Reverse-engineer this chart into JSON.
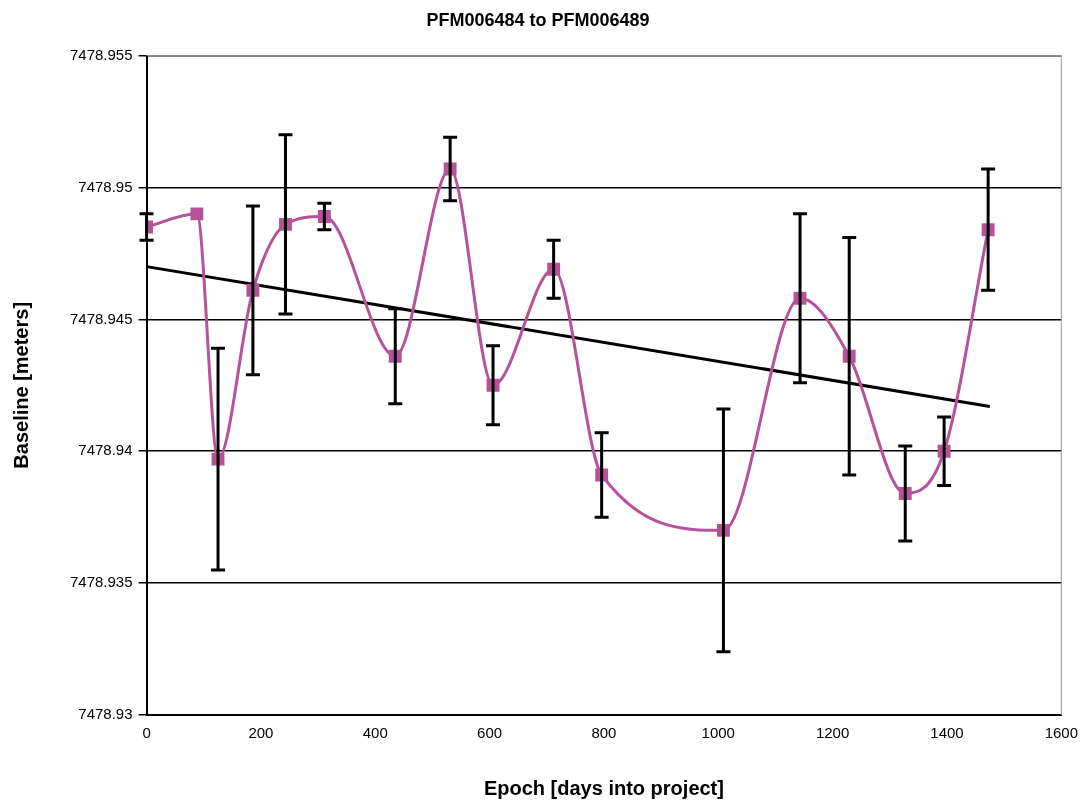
{
  "chart_data": {
    "type": "line",
    "title": "PFM006484 to PFM006489",
    "xlabel": "Epoch [days into project]",
    "ylabel": "Baseline [meters]",
    "x": [
      0,
      88,
      125,
      186,
      243,
      311,
      435,
      531,
      606,
      712,
      796,
      1009,
      1143,
      1229,
      1327,
      1395,
      1472
    ],
    "series": [
      {
        "color": "#b5529a",
        "marker": "square",
        "values": [
          7478.9485,
          7478.949,
          7478.9397,
          7478.9461,
          7478.9486,
          7478.9489,
          7478.9436,
          7478.9507,
          7478.9425,
          7478.9469,
          7478.9391,
          7478.937,
          7478.9458,
          7478.9436,
          7478.9384,
          7478.94,
          7478.9484
        ],
        "errors": [
          0.0005,
          null,
          0.0042,
          0.0032,
          0.0034,
          0.0005,
          0.0018,
          0.0012,
          0.0015,
          0.0011,
          0.0016,
          0.0046,
          0.0032,
          0.0045,
          0.0018,
          0.0013,
          0.0023
        ]
      },
      {
        "type": "line",
        "color": "#000000",
        "marker": "none",
        "x": [
          0,
          1475
        ],
        "values": [
          7478.947,
          7478.9417
        ]
      }
    ],
    "xlim": [
      0,
      1600
    ],
    "xticks": [
      0,
      200,
      400,
      600,
      800,
      1000,
      1200,
      1400,
      1600
    ],
    "ylim": [
      7478.93,
      7478.955
    ],
    "yticks": [
      7478.93,
      7478.935,
      7478.94,
      7478.945,
      7478.95,
      7478.955
    ],
    "grid": "y",
    "legend": false
  }
}
